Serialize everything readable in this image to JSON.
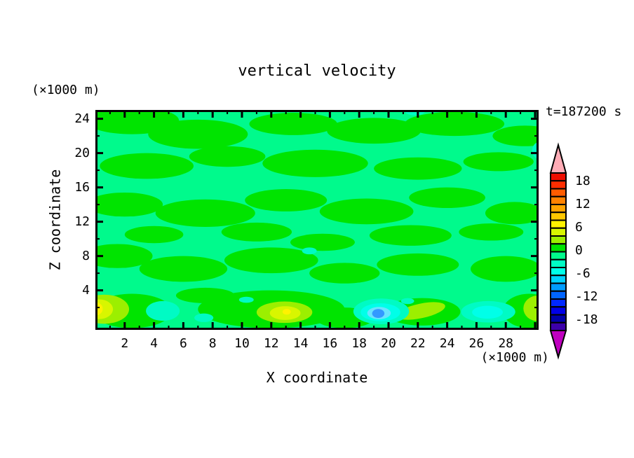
{
  "chart_data": {
    "type": "heatmap",
    "subtype": "filled-contour",
    "title": "vertical velocity",
    "xlabel": "X coordinate",
    "ylabel": "Z coordinate",
    "x_units": "(×1000 m)",
    "y_units": "(×1000 m)",
    "time_annotation": "t=187200 s",
    "xlim": [
      0,
      30.3
    ],
    "ylim": [
      0,
      25.1
    ],
    "x_tick_labels": [
      "2",
      "4",
      "6",
      "8",
      "10",
      "12",
      "14",
      "16",
      "18",
      "20",
      "22",
      "24",
      "26",
      "28"
    ],
    "y_tick_labels": [
      "4",
      "8",
      "12",
      "16",
      "20",
      "24"
    ],
    "grid": false,
    "legend_position": "right-colorbar",
    "colorbar": {
      "tick_labels": [
        "18",
        "12",
        "6",
        "0",
        "-6",
        "-12",
        "-18"
      ],
      "over_color": "#ffacb6",
      "under_color": "#bf00bf",
      "colors": [
        "#ee0d00",
        "#ff2d00",
        "#ff5c00",
        "#ff8200",
        "#ffa300",
        "#ffc700",
        "#fff200",
        "#d8f600",
        "#9cef00",
        "#00e400",
        "#00fa8c",
        "#00fbc4",
        "#00ffe8",
        "#00d2ff",
        "#009cff",
        "#0064ff",
        "#0028ff",
        "#0000e6",
        "#0000aa",
        "#3c00aa"
      ]
    },
    "palette": {
      "background": "#00fa8c",
      "green": "#00e400",
      "chartreuse": "#9cef00",
      "yellow_green": "#d8f600",
      "yellow": "#fff200",
      "aqua": "#00fbc4",
      "turquoise": "#00ffe8",
      "pale_cyan": "#69e4ff",
      "blue": "#3399ff"
    },
    "field_summary": "Field of vertical velocity near 0 everywhere: mottled horizontal streaks of slightly positive (green) over spring-green background; weak updraft maxima (yellow) near the surface at x≈0-2 and x≈11-15, weak downdrafts (cyan/blue) near the surface at x≈19-20 and x≈26-27.",
    "features": [
      {
        "x": 2.5,
        "z": 23.8,
        "rx": 3.2,
        "rz": 1.6,
        "c": "green"
      },
      {
        "x": 7.0,
        "z": 22.2,
        "rx": 3.4,
        "rz": 1.7,
        "c": "green"
      },
      {
        "x": 13.5,
        "z": 23.4,
        "rx": 3.0,
        "rz": 1.3,
        "c": "green"
      },
      {
        "x": 19.0,
        "z": 22.6,
        "rx": 3.2,
        "rz": 1.5,
        "c": "green"
      },
      {
        "x": 24.5,
        "z": 23.4,
        "rx": 3.4,
        "rz": 1.4,
        "c": "green"
      },
      {
        "x": 29.3,
        "z": 22.0,
        "rx": 2.2,
        "rz": 1.2,
        "c": "green"
      },
      {
        "x": 3.5,
        "z": 18.5,
        "rx": 3.2,
        "rz": 1.5,
        "c": "green"
      },
      {
        "x": 9.0,
        "z": 19.6,
        "rx": 2.6,
        "rz": 1.2,
        "c": "green"
      },
      {
        "x": 15.0,
        "z": 18.8,
        "rx": 3.6,
        "rz": 1.6,
        "c": "green"
      },
      {
        "x": 22.0,
        "z": 18.2,
        "rx": 3.0,
        "rz": 1.3,
        "c": "green"
      },
      {
        "x": 27.5,
        "z": 19.0,
        "rx": 2.4,
        "rz": 1.1,
        "c": "green"
      },
      {
        "x": 2.0,
        "z": 14.0,
        "rx": 2.6,
        "rz": 1.4,
        "c": "green"
      },
      {
        "x": 7.5,
        "z": 13.0,
        "rx": 3.4,
        "rz": 1.6,
        "c": "green"
      },
      {
        "x": 13.0,
        "z": 14.5,
        "rx": 2.8,
        "rz": 1.3,
        "c": "green"
      },
      {
        "x": 18.5,
        "z": 13.2,
        "rx": 3.2,
        "rz": 1.5,
        "c": "green"
      },
      {
        "x": 24.0,
        "z": 14.8,
        "rx": 2.6,
        "rz": 1.2,
        "c": "green"
      },
      {
        "x": 28.6,
        "z": 13.0,
        "rx": 2.0,
        "rz": 1.3,
        "c": "green"
      },
      {
        "x": 11.0,
        "z": 10.8,
        "rx": 2.4,
        "rz": 1.1,
        "c": "green"
      },
      {
        "x": 21.5,
        "z": 10.4,
        "rx": 2.8,
        "rz": 1.2,
        "c": "green"
      },
      {
        "x": 27.0,
        "z": 10.8,
        "rx": 2.2,
        "rz": 1.0,
        "c": "green"
      },
      {
        "x": 1.5,
        "z": 8.0,
        "rx": 2.4,
        "rz": 1.4,
        "c": "green"
      },
      {
        "x": 6.0,
        "z": 6.5,
        "rx": 3.0,
        "rz": 1.5,
        "c": "green"
      },
      {
        "x": 12.0,
        "z": 7.5,
        "rx": 3.2,
        "rz": 1.5,
        "c": "green"
      },
      {
        "x": 17.0,
        "z": 6.0,
        "rx": 2.4,
        "rz": 1.2,
        "c": "green"
      },
      {
        "x": 22.0,
        "z": 7.0,
        "rx": 2.8,
        "rz": 1.3,
        "c": "green"
      },
      {
        "x": 28.0,
        "z": 6.5,
        "rx": 2.4,
        "rz": 1.5,
        "c": "green"
      },
      {
        "x": 4.0,
        "z": 10.5,
        "rx": 2.0,
        "rz": 1.0,
        "c": "green"
      },
      {
        "x": 15.5,
        "z": 9.6,
        "rx": 2.2,
        "rz": 1.0,
        "c": "green"
      },
      {
        "x": 2.5,
        "z": 1.6,
        "rx": 2.7,
        "rz": 2.0,
        "c": "green"
      },
      {
        "x": 12.0,
        "z": 1.8,
        "rx": 5.0,
        "rz": 2.2,
        "c": "green"
      },
      {
        "x": 17.0,
        "z": 0.8,
        "rx": 2.0,
        "rz": 1.2,
        "c": "green"
      },
      {
        "x": 22.3,
        "z": 1.5,
        "rx": 2.6,
        "rz": 1.6,
        "c": "green"
      },
      {
        "x": 29.6,
        "z": 1.6,
        "rx": 1.8,
        "rz": 2.0,
        "c": "green"
      },
      {
        "x": 7.5,
        "z": 3.4,
        "rx": 2.0,
        "rz": 0.9,
        "c": "green"
      },
      {
        "x": 0.6,
        "z": 1.8,
        "rx": 1.7,
        "rz": 1.7,
        "c": "chartreuse"
      },
      {
        "x": 12.9,
        "z": 1.45,
        "rx": 1.9,
        "rz": 1.25,
        "c": "chartreuse"
      },
      {
        "x": 22.2,
        "z": 1.6,
        "rx": 1.7,
        "rz": 0.85,
        "c": "chartreuse",
        "rot": -12
      },
      {
        "x": 30.2,
        "z": 1.9,
        "rx": 1.0,
        "rz": 1.5,
        "c": "chartreuse"
      },
      {
        "x": 0.25,
        "z": 1.8,
        "rx": 0.95,
        "rz": 1.15,
        "c": "yellow_green"
      },
      {
        "x": 12.95,
        "z": 1.35,
        "rx": 1.05,
        "rz": 0.8,
        "c": "yellow_green"
      },
      {
        "x": 0.05,
        "z": 1.85,
        "rx": 0.45,
        "rz": 0.75,
        "c": "yellow"
      },
      {
        "x": 13.05,
        "z": 1.5,
        "rx": 0.28,
        "rz": 0.33,
        "c": "yellow"
      },
      {
        "x": 4.6,
        "z": 1.6,
        "rx": 1.15,
        "rz": 1.15,
        "c": "aqua"
      },
      {
        "x": 7.4,
        "z": 0.8,
        "rx": 0.65,
        "rz": 0.5,
        "c": "aqua"
      },
      {
        "x": 19.5,
        "z": 1.55,
        "rx": 1.9,
        "rz": 1.5,
        "c": "aqua"
      },
      {
        "x": 26.8,
        "z": 1.5,
        "rx": 1.85,
        "rz": 1.25,
        "c": "aqua"
      },
      {
        "x": 21.3,
        "z": 2.75,
        "rx": 0.45,
        "rz": 0.35,
        "c": "aqua"
      },
      {
        "x": 21.8,
        "z": 24.9,
        "rx": 0.7,
        "rz": 0.5,
        "c": "aqua"
      },
      {
        "x": 30.3,
        "z": 20.3,
        "rx": 0.5,
        "rz": 1.0,
        "c": "aqua"
      },
      {
        "x": 14.6,
        "z": 8.6,
        "rx": 0.5,
        "rz": 0.4,
        "c": "aqua"
      },
      {
        "x": 10.3,
        "z": 2.9,
        "rx": 0.5,
        "rz": 0.35,
        "c": "aqua"
      },
      {
        "x": 19.45,
        "z": 1.45,
        "rx": 1.35,
        "rz": 1.05,
        "c": "turquoise"
      },
      {
        "x": 26.75,
        "z": 1.45,
        "rx": 1.05,
        "rz": 0.75,
        "c": "turquoise"
      },
      {
        "x": 19.35,
        "z": 1.35,
        "rx": 0.8,
        "rz": 0.72,
        "c": "pale_cyan"
      },
      {
        "x": 19.3,
        "z": 1.3,
        "rx": 0.42,
        "rz": 0.52,
        "c": "blue"
      }
    ]
  }
}
